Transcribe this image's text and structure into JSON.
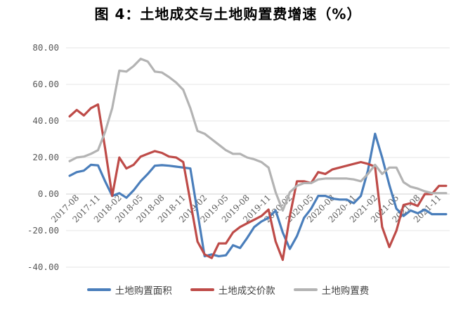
{
  "chart_data": {
    "type": "line",
    "title": "图 4：土地成交与土地购置费增速（%）",
    "ylim": [
      -40,
      80
    ],
    "yticks": [
      "80.00",
      "60.00",
      "40.00",
      "20.00",
      "0.00",
      "-20.00",
      "-40.00"
    ],
    "ytick_values": [
      80,
      60,
      40,
      20,
      0,
      -20,
      -40
    ],
    "x": [
      "2017-07",
      "2017-08",
      "2017-09",
      "2017-10",
      "2017-11",
      "2017-12",
      "2018-01",
      "2018-02",
      "2018-03",
      "2018-04",
      "2018-05",
      "2018-06",
      "2018-07",
      "2018-08",
      "2018-09",
      "2018-10",
      "2018-11",
      "2018-12",
      "2019-01",
      "2019-02",
      "2019-03",
      "2019-04",
      "2019-05",
      "2019-06",
      "2019-07",
      "2019-08",
      "2019-09",
      "2019-10",
      "2019-11",
      "2019-12",
      "2020-01",
      "2020-02",
      "2020-03",
      "2020-04",
      "2020-05",
      "2020-06",
      "2020-07",
      "2020-08",
      "2020-09",
      "2020-10",
      "2020-11",
      "2020-12",
      "2021-01",
      "2021-02",
      "2021-03",
      "2021-04",
      "2021-05",
      "2021-06",
      "2021-07",
      "2021-08",
      "2021-09",
      "2021-10",
      "2021-11",
      "2021-12"
    ],
    "xtick_labels": [
      "2017-08",
      "2017-11",
      "2018-02",
      "2018-05",
      "2018-08",
      "2018-11",
      "2019-02",
      "2019-05",
      "2019-08",
      "2019-11",
      "2020-02",
      "2020-05",
      "2020-08",
      "2020-11",
      "2021-02",
      "2021-05",
      "2021-08",
      "2021-11"
    ],
    "grid": "horizontal",
    "legend_position": "bottom",
    "series": [
      {
        "name": "土地购置面积",
        "color": "#4a7ebb",
        "values": [
          10.0,
          12.0,
          12.8,
          16.0,
          15.7,
          7.0,
          -1.0,
          0.5,
          -2.0,
          2.0,
          7.0,
          11.0,
          15.5,
          15.8,
          15.5,
          15.0,
          14.5,
          14.0,
          -10.0,
          -34.0,
          -33.0,
          -34.0,
          -33.5,
          -28.0,
          -29.5,
          -24.0,
          -18.0,
          -15.0,
          -13.0,
          -9.0,
          -21.0,
          -30.0,
          -23.0,
          -13.0,
          -8.0,
          -1.0,
          -1.0,
          -2.5,
          -3.0,
          -3.0,
          -5.0,
          -1.0,
          13.0,
          33.0,
          20.0,
          5.0,
          -8.0,
          -12.0,
          -9.0,
          -10.5,
          -8.5,
          -11.0,
          -11.0,
          -11.0
        ]
      },
      {
        "name": "土地成交价款",
        "color": "#be4b48",
        "values": [
          42.5,
          46.0,
          43.0,
          47.0,
          49.0,
          25.0,
          -1.0,
          20.0,
          14.0,
          16.0,
          20.5,
          22.0,
          23.5,
          22.5,
          20.5,
          20.0,
          17.5,
          -4.0,
          -26.0,
          -33.0,
          -35.0,
          -27.0,
          -27.0,
          -21.0,
          -18.0,
          -16.0,
          -14.0,
          -12.0,
          -8.5,
          -26.0,
          -36.0,
          -12.0,
          7.0,
          7.0,
          6.0,
          12.0,
          11.0,
          13.5,
          14.5,
          15.5,
          16.5,
          17.5,
          16.5,
          15.0,
          -18.0,
          -29.0,
          -20.0,
          -6.0,
          -5.0,
          -6.5,
          0.0,
          0.0,
          4.5,
          4.5
        ]
      },
      {
        "name": "土地购置费",
        "color": "#b3b3b3",
        "values": [
          18.0,
          20.0,
          20.5,
          22.0,
          24.0,
          34.0,
          47.0,
          67.5,
          67.0,
          70.0,
          74.0,
          72.5,
          67.0,
          66.5,
          64.0,
          61.0,
          57.0,
          47.0,
          34.5,
          33.0,
          30.0,
          27.0,
          24.0,
          22.0,
          22.0,
          20.0,
          19.0,
          17.5,
          14.5,
          1.0,
          -9.0,
          1.0,
          4.5,
          6.0,
          6.0,
          8.0,
          8.5,
          8.5,
          8.5,
          8.5,
          8.0,
          7.0,
          11.0,
          16.0,
          11.0,
          14.5,
          14.5,
          6.5,
          4.0,
          3.0,
          1.5,
          0.5,
          0.5,
          0.5
        ]
      }
    ]
  }
}
